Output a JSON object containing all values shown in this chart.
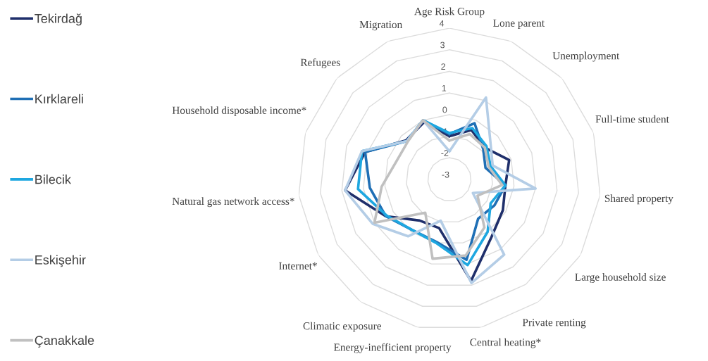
{
  "chart_data": {
    "type": "radar",
    "categories": [
      "Age Risk Group",
      "Lone parent",
      "Unemployment",
      "Full-time student",
      "Shared property",
      "Large household size",
      "Private renting",
      "Central heating*",
      "Energy-inefficient property",
      "Climatic exposure",
      "Internet*",
      "Natural gas network access*",
      "Household disposable income*",
      "Refugees",
      "Migration"
    ],
    "series": [
      {
        "name": "Tekirdağ",
        "color": "#1f2f6b",
        "values": [
          -1.0,
          -0.5,
          -0.8,
          -0.1,
          -0.4,
          -0.15,
          0.3,
          1.8,
          -0.7,
          -0.65,
          0.4,
          1.85,
          1.1,
          -0.3,
          -0.1
        ]
      },
      {
        "name": "Kırklareli",
        "color": "#1f6fb5",
        "values": [
          -0.9,
          -0.15,
          -0.9,
          -1.25,
          -0.4,
          -0.6,
          -0.75,
          0.8,
          -0.05,
          -0.1,
          0.4,
          0.7,
          1.1,
          -0.35,
          0.0
        ]
      },
      {
        "name": "Bilecik",
        "color": "#1ea7e0",
        "values": [
          -0.85,
          -0.4,
          -0.7,
          -1.0,
          -0.4,
          -0.8,
          0.0,
          1.05,
          0.0,
          -0.1,
          0.35,
          1.25,
          1.25,
          -0.35,
          0.0
        ]
      },
      {
        "name": "Eskişehir",
        "color": "#b4cde6",
        "values": [
          -1.7,
          1.15,
          -0.45,
          -0.9,
          1.0,
          -1.75,
          1.3,
          1.9,
          -1.05,
          0.25,
          1.1,
          1.85,
          1.25,
          -0.35,
          0.0
        ]
      },
      {
        "name": "Çanakkale",
        "color": "#c0c0c0",
        "values": [
          -1.2,
          -0.7,
          -0.8,
          -1.1,
          -0.55,
          -1.5,
          -0.25,
          0.6,
          0.75,
          -1.1,
          1.0,
          0.15,
          -0.4,
          -0.4,
          0.0
        ]
      }
    ],
    "ylim": [
      -3,
      4
    ],
    "yticks": [
      -3,
      -2,
      -1,
      0,
      1,
      2,
      3,
      4
    ],
    "grid": true,
    "legend": "left",
    "marker": "none",
    "line_style": "solid"
  }
}
